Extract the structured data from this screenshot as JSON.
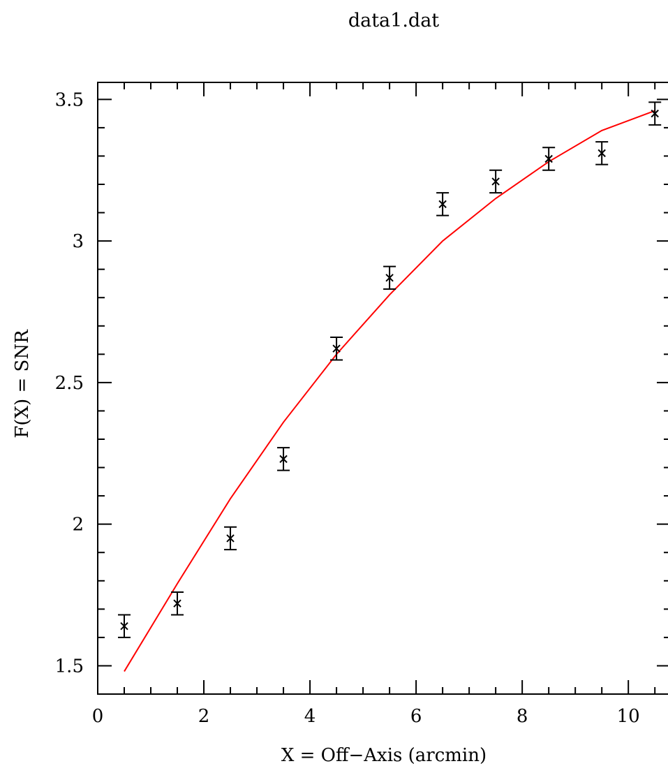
{
  "chart_data": {
    "type": "scatter",
    "title": "data1.dat",
    "xlabel": "X = Off−Axis (arcmin)",
    "ylabel": "F(X) = SNR",
    "xlim": [
      0,
      10.8
    ],
    "ylim": [
      1.4,
      3.56
    ],
    "x_major_ticks": [
      0,
      2,
      4,
      6,
      8,
      10
    ],
    "x_minor_step": 0.5,
    "y_major_ticks": [
      1.5,
      2,
      2.5,
      3,
      3.5
    ],
    "y_minor_step": 0.1,
    "grid": false,
    "points": {
      "x": [
        0.5,
        1.5,
        2.5,
        3.5,
        4.5,
        5.5,
        6.5,
        7.5,
        8.5,
        9.5,
        10.5
      ],
      "y": [
        1.64,
        1.72,
        1.95,
        2.23,
        2.62,
        2.87,
        3.13,
        3.21,
        3.29,
        3.31,
        3.45
      ],
      "yerr": [
        0.04,
        0.04,
        0.04,
        0.04,
        0.04,
        0.04,
        0.04,
        0.04,
        0.04,
        0.04,
        0.04
      ],
      "marker": "x",
      "color": "#000000"
    },
    "fit": {
      "x": [
        0.5,
        1.5,
        2.5,
        3.5,
        4.5,
        5.5,
        6.5,
        7.5,
        8.5,
        9.5,
        10.5
      ],
      "y": [
        1.48,
        1.79,
        2.09,
        2.36,
        2.6,
        2.81,
        3.0,
        3.15,
        3.28,
        3.39,
        3.46
      ],
      "color": "#ff0000"
    }
  }
}
